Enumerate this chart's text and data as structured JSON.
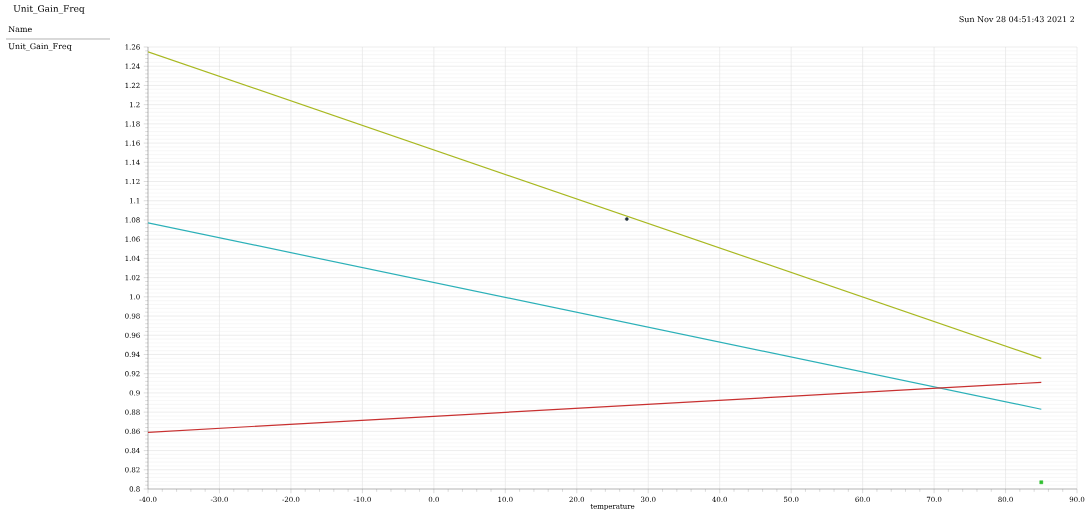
{
  "chart_data": {
    "type": "line",
    "title": "Unit_Gain_Freq",
    "xlabel": "temperature",
    "annotations": [
      "Sun Nov 28 04:51:43 2021  2",
      "Name",
      "Unit_Gain_Freq"
    ],
    "series": [
      {
        "color": "#a8b820",
        "x": [
          -40,
          85
        ],
        "values": [
          1.255,
          0.936
        ]
      },
      {
        "color": "#2bb0b8",
        "x": [
          -40,
          85
        ],
        "values": [
          1.077,
          0.883
        ]
      },
      {
        "color": "#c83030",
        "x": [
          -40,
          85
        ],
        "values": [
          0.859,
          0.911
        ]
      },
      {
        "type": "scatter",
        "color": "#20303a",
        "x": [
          27
        ],
        "values": [
          1.081
        ],
        "marker": "circle"
      },
      {
        "type": "scatter",
        "color": "#30c030",
        "x": [
          85
        ],
        "values": [
          0.807
        ],
        "marker": "square"
      }
    ],
    "xlim": [
      -40,
      90
    ],
    "ylim": [
      0.8,
      1.26
    ],
    "xticks": [
      {
        "value": -40,
        "label": "-40.0"
      },
      {
        "value": -30,
        "label": "-30.0"
      },
      {
        "value": -20,
        "label": "-20.0"
      },
      {
        "value": -10,
        "label": "-10.0"
      },
      {
        "value": 0,
        "label": "0.0"
      },
      {
        "value": 10,
        "label": "10.0"
      },
      {
        "value": 20,
        "label": "20.0"
      },
      {
        "value": 30,
        "label": "30.0"
      },
      {
        "value": 40,
        "label": "40.0"
      },
      {
        "value": 50,
        "label": "50.0"
      },
      {
        "value": 60,
        "label": "60.0"
      },
      {
        "value": 70,
        "label": "70.0"
      },
      {
        "value": 80,
        "label": "80.0"
      },
      {
        "value": 90,
        "label": "90.0"
      }
    ],
    "yticks": [
      0.8,
      0.82,
      0.84,
      0.86,
      0.88,
      {
        "value": 0.9,
        "label": "0.9"
      },
      0.92,
      0.94,
      0.96,
      0.98,
      {
        "value": 1.0,
        "label": "1.0"
      },
      1.02,
      1.04,
      1.06,
      1.08,
      {
        "value": 1.1,
        "label": "1.1"
      },
      1.12,
      1.14,
      1.16,
      1.18,
      {
        "value": 1.2,
        "label": "1.2"
      },
      1.22,
      1.24,
      1.26
    ],
    "grid": true,
    "legend": false,
    "marker": "none",
    "line_style": "solid"
  }
}
